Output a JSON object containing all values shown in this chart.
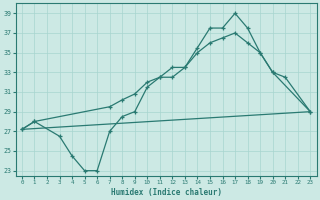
{
  "xlabel": "Humidex (Indice chaleur)",
  "bg_color": "#cce9e4",
  "grid_color": "#a8d5cf",
  "line_color": "#2a7a72",
  "xlim": [
    -0.5,
    23.5
  ],
  "ylim": [
    22.5,
    40.0
  ],
  "xticks": [
    0,
    1,
    2,
    3,
    4,
    5,
    6,
    7,
    8,
    9,
    10,
    11,
    12,
    13,
    14,
    15,
    16,
    17,
    18,
    19,
    20,
    21,
    22,
    23
  ],
  "yticks": [
    23,
    25,
    27,
    29,
    31,
    33,
    35,
    37,
    39
  ],
  "line1_x": [
    0,
    1,
    3,
    4,
    5,
    6,
    7,
    8,
    9,
    10,
    11,
    12,
    13,
    14,
    15,
    16,
    17,
    18,
    19,
    20,
    21,
    23
  ],
  "line1_y": [
    27.2,
    28.0,
    26.5,
    24.5,
    23.0,
    23.0,
    27.0,
    28.5,
    29.0,
    31.5,
    32.5,
    32.5,
    33.5,
    35.5,
    37.5,
    37.5,
    39.0,
    37.5,
    35.0,
    33.0,
    32.5,
    29.0
  ],
  "line2_x": [
    0,
    1,
    7,
    8,
    9,
    10,
    11,
    12,
    13,
    14,
    15,
    16,
    17,
    18,
    19,
    20,
    23
  ],
  "line2_y": [
    27.2,
    28.0,
    29.5,
    30.2,
    30.8,
    32.0,
    32.5,
    33.5,
    33.5,
    35.0,
    36.0,
    36.5,
    37.0,
    36.0,
    35.0,
    33.0,
    29.0
  ],
  "line3_x": [
    0,
    23
  ],
  "line3_y": [
    27.2,
    29.0
  ]
}
